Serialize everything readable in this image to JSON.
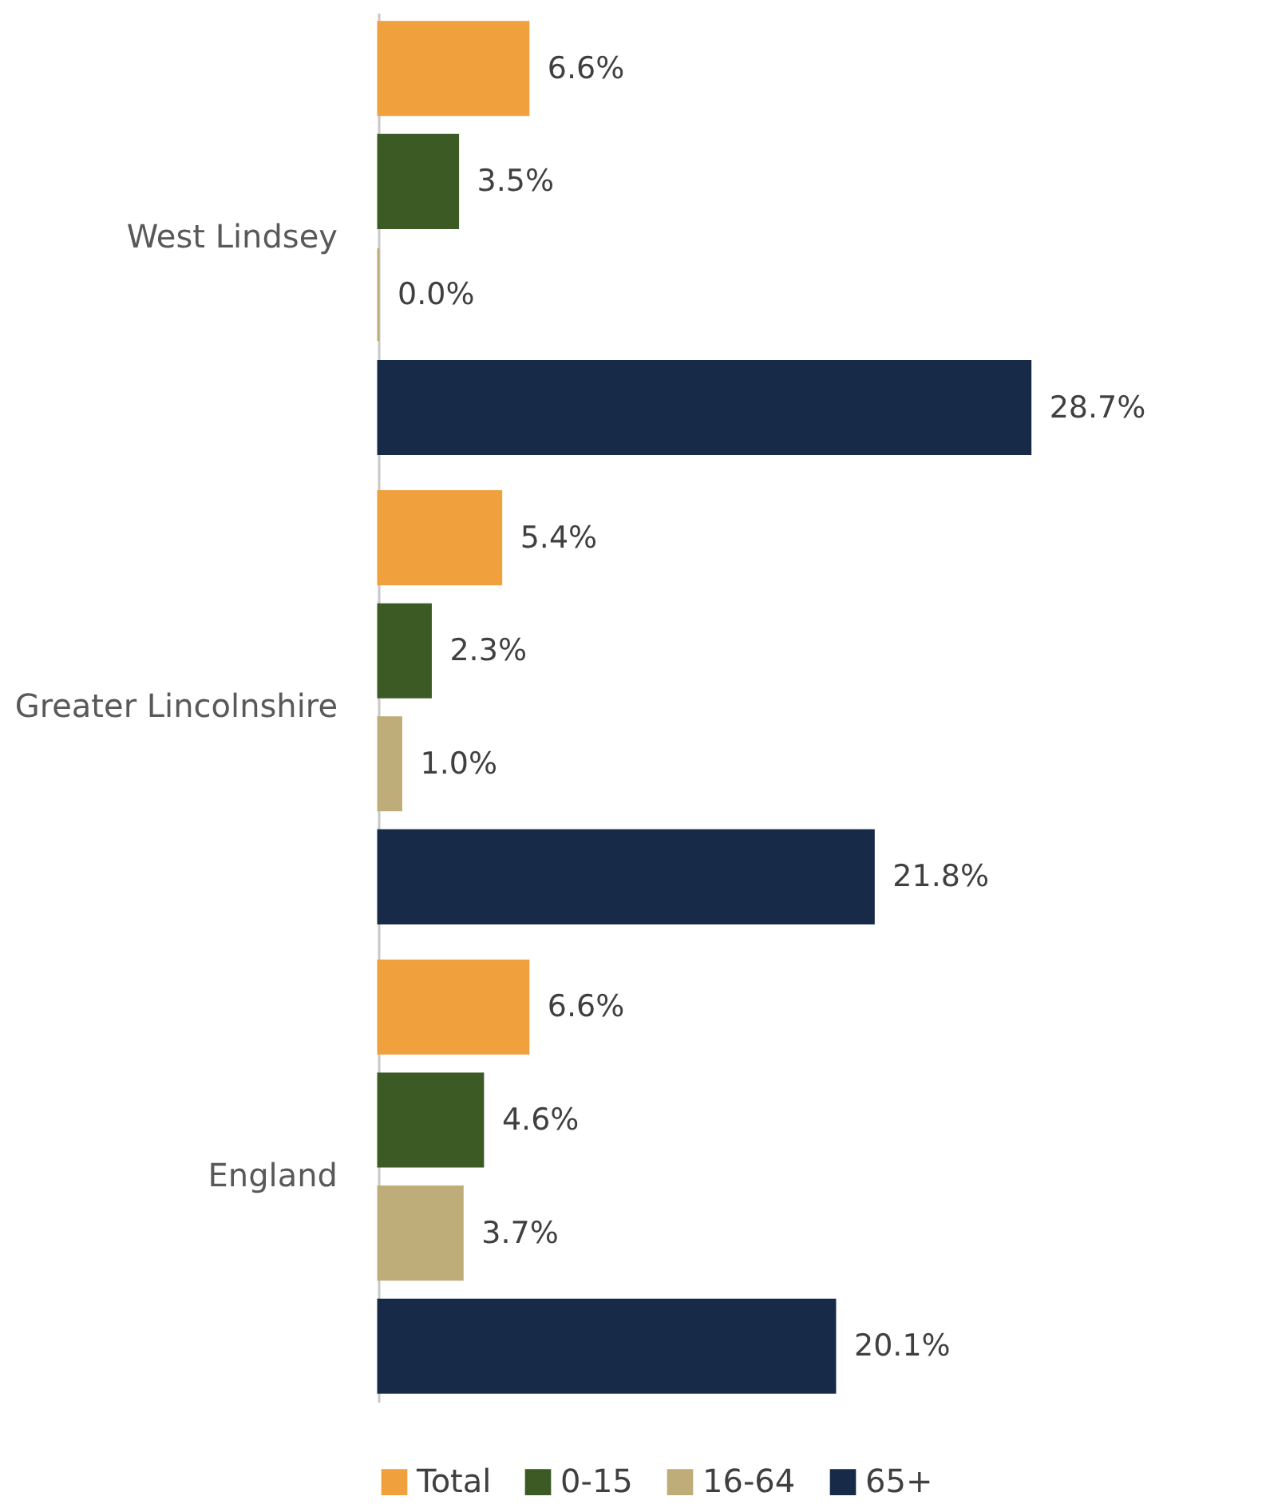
{
  "chart_data": {
    "type": "bar",
    "orientation": "horizontal",
    "categories": [
      "West Lindsey",
      "Greater Lincolnshire",
      "England"
    ],
    "series": [
      {
        "name": "Total",
        "color": "#f0a03c",
        "values": [
          6.6,
          5.4,
          6.6
        ],
        "value_labels": [
          "6.6%",
          "5.4%",
          "6.6%"
        ]
      },
      {
        "name": "0-15",
        "color": "#3b5a24",
        "values": [
          3.5,
          2.3,
          4.6
        ],
        "value_labels": [
          "3.5%",
          "2.3%",
          "4.6%"
        ]
      },
      {
        "name": "16-64",
        "color": "#bfad79",
        "values": [
          0.0,
          1.0,
          3.7
        ],
        "value_labels": [
          "0.0%",
          "1.0%",
          "3.7%"
        ]
      },
      {
        "name": "65+",
        "color": "#172a48",
        "values": [
          28.7,
          21.8,
          20.1
        ],
        "value_labels": [
          "28.7%",
          "21.8%",
          "20.1%"
        ]
      }
    ],
    "legend": "bottom"
  }
}
